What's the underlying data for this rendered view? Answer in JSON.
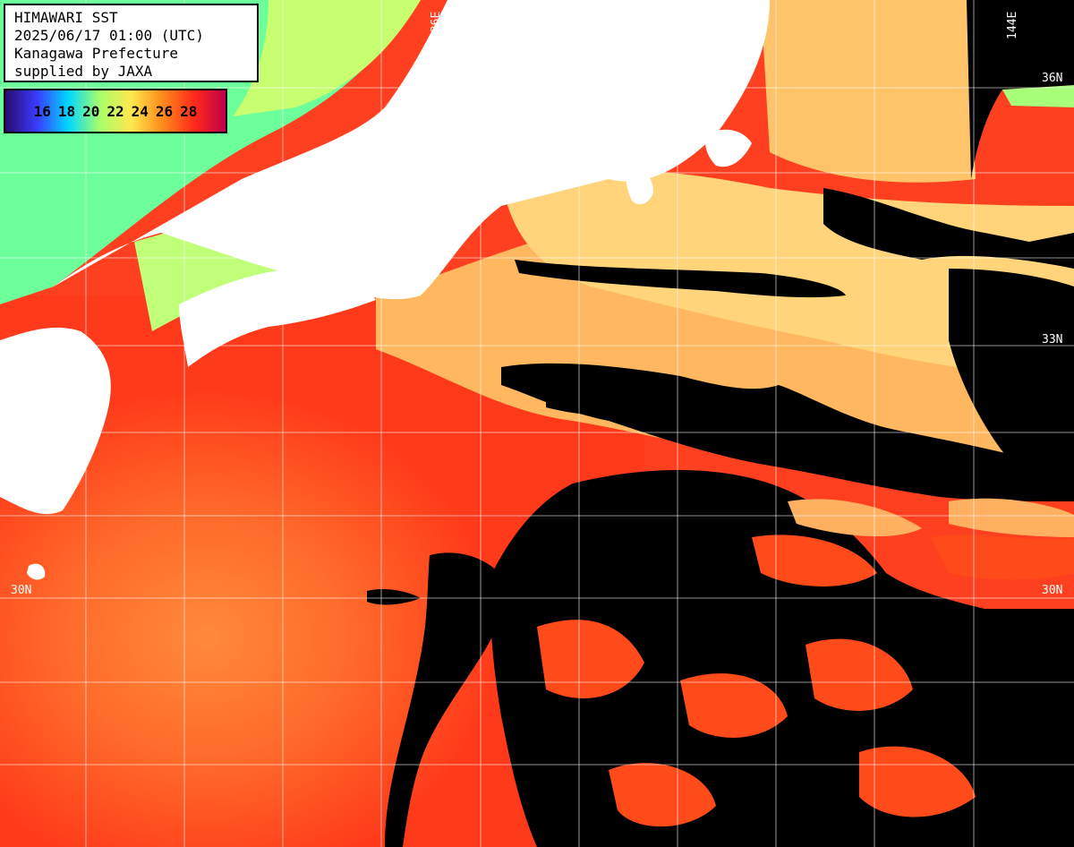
{
  "header": {
    "line1": "HIMAWARI SST",
    "line2": "2025/06/17 01:00 (UTC)",
    "line3": "Kanagawa Prefecture",
    "line4": "supplied by JAXA"
  },
  "legend": {
    "ticks": [
      "16",
      "18",
      "20",
      "22",
      "24",
      "26",
      "28"
    ],
    "colors": [
      "#2a0a6e",
      "#3a3aff",
      "#00d8ff",
      "#a8ff6a",
      "#ffe84d",
      "#ff8a1a",
      "#ff2a1a",
      "#c0004a"
    ]
  },
  "grid": {
    "lat_labels": [
      "36N",
      "33N",
      "30N",
      "30N"
    ],
    "lon_labels": [
      "136E",
      "144E"
    ]
  },
  "colors": {
    "land": "#ffffff",
    "no_data": "#000000",
    "warm_sea": "#ff4a1a",
    "mid_sea": "#ff8c2a",
    "cool_sea": "#ffd070",
    "coldest_sea": "#7dffa0"
  }
}
